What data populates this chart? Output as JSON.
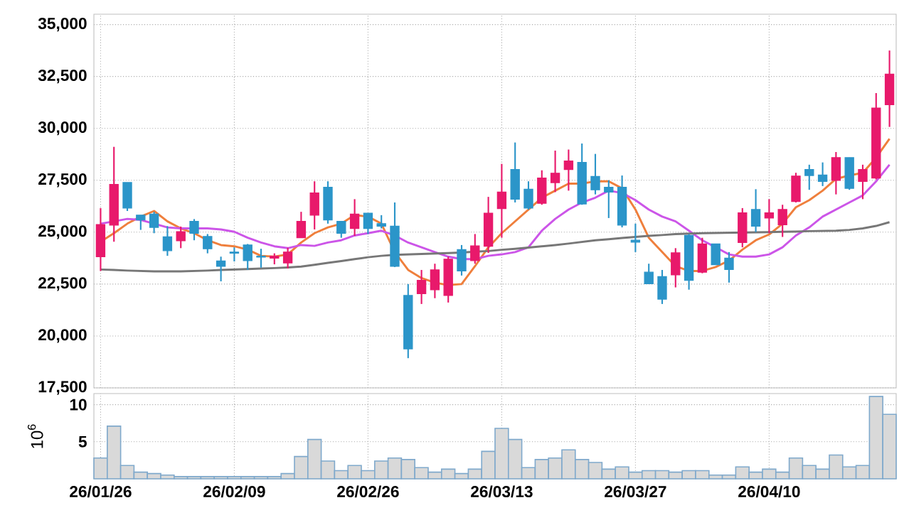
{
  "chart_data": [
    {
      "type": "candlestick",
      "categories": [
        null,
        null,
        null,
        null,
        null,
        null,
        null,
        null,
        null,
        null,
        null,
        null,
        null,
        null,
        null,
        null,
        null,
        null,
        null,
        null,
        null,
        null,
        null,
        null,
        null,
        null,
        null,
        null,
        null,
        null,
        null,
        null,
        null,
        null,
        null,
        null,
        null,
        null,
        null,
        null,
        null,
        null,
        null,
        null,
        null,
        null,
        null,
        null,
        null,
        null,
        null,
        null,
        null,
        null,
        null,
        null,
        null,
        null,
        null,
        null
      ],
      "ohlc": [
        [
          23820,
          26160,
          23130,
          25360
        ],
        [
          25340,
          29110,
          24540,
          27300
        ],
        [
          27390,
          27390,
          26020,
          26160
        ],
        [
          25820,
          25820,
          25110,
          25590
        ],
        [
          25870,
          25980,
          24950,
          25230
        ],
        [
          24770,
          25290,
          23860,
          24110
        ],
        [
          24590,
          25270,
          24230,
          25020
        ],
        [
          25520,
          25630,
          24610,
          24950
        ],
        [
          24790,
          24910,
          23980,
          24200
        ],
        [
          23610,
          23820,
          22630,
          23360
        ],
        [
          24040,
          24270,
          23590,
          23990
        ],
        [
          24380,
          24430,
          23180,
          23630
        ],
        [
          23840,
          24200,
          23290,
          23800
        ],
        [
          23750,
          23980,
          23450,
          23840
        ],
        [
          23520,
          24250,
          23250,
          24040
        ],
        [
          24730,
          25980,
          24730,
          25520
        ],
        [
          25820,
          27450,
          25130,
          26890
        ],
        [
          27160,
          27450,
          25410,
          25590
        ],
        [
          25520,
          25520,
          24730,
          24950
        ],
        [
          25180,
          26590,
          24820,
          25870
        ],
        [
          25910,
          25910,
          24910,
          25180
        ],
        [
          25410,
          25820,
          25180,
          25290
        ],
        [
          25290,
          26430,
          23320,
          23360
        ],
        [
          21950,
          22500,
          18930,
          19380
        ],
        [
          22040,
          23180,
          21540,
          22680
        ],
        [
          22230,
          23480,
          21820,
          23180
        ],
        [
          21950,
          23820,
          21610,
          23700
        ],
        [
          24160,
          24380,
          22910,
          23130
        ],
        [
          23630,
          24910,
          23480,
          24340
        ],
        [
          24320,
          26700,
          24000,
          25910
        ],
        [
          26140,
          28290,
          24730,
          26930
        ],
        [
          28020,
          29320,
          26430,
          26590
        ],
        [
          27070,
          27450,
          26090,
          26160
        ],
        [
          26390,
          27980,
          26320,
          27610
        ],
        [
          27390,
          28930,
          26930,
          27840
        ],
        [
          28020,
          28980,
          27000,
          28430
        ],
        [
          28360,
          29270,
          26320,
          26360
        ],
        [
          27680,
          28770,
          26820,
          27040
        ],
        [
          27160,
          27500,
          25680,
          26930
        ],
        [
          27160,
          27730,
          25230,
          25340
        ],
        [
          24610,
          25410,
          24040,
          24520
        ],
        [
          23070,
          23480,
          22520,
          22520
        ],
        [
          22860,
          23180,
          21540,
          21770
        ],
        [
          22950,
          24230,
          22340,
          24000
        ],
        [
          24840,
          24910,
          22230,
          22680
        ],
        [
          23070,
          24730,
          23020,
          24430
        ],
        [
          24430,
          24430,
          23430,
          23430
        ],
        [
          23750,
          24040,
          22570,
          23200
        ],
        [
          24500,
          26160,
          24270,
          25930
        ],
        [
          26090,
          27070,
          25000,
          25290
        ],
        [
          25680,
          26590,
          24950,
          25930
        ],
        [
          25360,
          26320,
          24770,
          26090
        ],
        [
          26480,
          27860,
          26430,
          27700
        ],
        [
          28020,
          28250,
          27040,
          27730
        ],
        [
          27750,
          28360,
          27220,
          27450
        ],
        [
          27500,
          28860,
          26820,
          28590
        ],
        [
          28590,
          28590,
          27040,
          27110
        ],
        [
          27450,
          28250,
          26590,
          28020
        ],
        [
          27610,
          31700,
          27540,
          30980
        ],
        [
          31140,
          33750,
          30070,
          32610
        ]
      ],
      "series": [
        {
          "type": "line",
          "color": "#ef7f3c",
          "values": [
            24540,
            24950,
            25410,
            25750,
            26020,
            25520,
            25180,
            24950,
            24610,
            24380,
            24320,
            24160,
            23860,
            23820,
            23930,
            24500,
            24950,
            25230,
            25410,
            25820,
            25750,
            25410,
            24040,
            23180,
            22790,
            22570,
            22450,
            22500,
            23360,
            24270,
            24950,
            25520,
            26090,
            26660,
            27000,
            27340,
            27340,
            27450,
            27450,
            27110,
            26090,
            24730,
            24040,
            23360,
            23130,
            23130,
            23320,
            23630,
            24160,
            24610,
            24890,
            25410,
            26200,
            26540,
            27000,
            27570,
            27730,
            27860,
            28590,
            29500
          ]
        },
        {
          "type": "line",
          "color": "#cc55e8",
          "values": [
            25410,
            25520,
            25640,
            25590,
            25410,
            25230,
            25180,
            25180,
            25180,
            25130,
            25020,
            24730,
            24500,
            24320,
            24230,
            24380,
            24340,
            24500,
            24610,
            24840,
            24950,
            25070,
            24840,
            24500,
            24270,
            24040,
            23820,
            23700,
            23700,
            23860,
            23930,
            24040,
            24270,
            25070,
            25640,
            26090,
            26430,
            26660,
            27000,
            26890,
            26540,
            26090,
            25750,
            25520,
            25070,
            24610,
            24270,
            23930,
            23820,
            23820,
            23930,
            24270,
            24840,
            25230,
            25750,
            26090,
            26430,
            26770,
            27450,
            28250
          ]
        },
        {
          "type": "line",
          "color": "#777777",
          "values": [
            23200,
            23180,
            23150,
            23130,
            23110,
            23110,
            23110,
            23130,
            23150,
            23180,
            23200,
            23220,
            23250,
            23270,
            23300,
            23340,
            23430,
            23520,
            23610,
            23700,
            23790,
            23860,
            23910,
            23930,
            23950,
            23970,
            23990,
            24020,
            24060,
            24090,
            24150,
            24200,
            24260,
            24320,
            24380,
            24450,
            24530,
            24610,
            24660,
            24720,
            24770,
            24820,
            24860,
            24910,
            24930,
            24950,
            24960,
            24970,
            24980,
            24990,
            25000,
            25020,
            25030,
            25050,
            25060,
            25070,
            25110,
            25180,
            25300,
            25480
          ]
        }
      ],
      "ylim": [
        17500,
        35500
      ],
      "yticks": [
        {
          "value": 17500,
          "label": "17,500"
        },
        {
          "value": 20000,
          "label": "20,000"
        },
        {
          "value": 22500,
          "label": "22,500"
        },
        {
          "value": 25000,
          "label": "25,000"
        },
        {
          "value": 27500,
          "label": "27,500"
        },
        {
          "value": 30000,
          "label": "30,000"
        },
        {
          "value": 32500,
          "label": "32,500"
        },
        {
          "value": 35000,
          "label": "35,000"
        }
      ],
      "grid": true,
      "tick_labels": "y"
    },
    {
      "type": "bar",
      "categories": [
        "26/01/26",
        null,
        null,
        null,
        null,
        null,
        null,
        null,
        null,
        null,
        "26/02/09",
        null,
        null,
        null,
        null,
        null,
        null,
        null,
        null,
        null,
        "26/02/26",
        null,
        null,
        null,
        null,
        null,
        null,
        null,
        null,
        null,
        "26/03/13",
        null,
        null,
        null,
        null,
        null,
        null,
        null,
        null,
        null,
        "26/03/27",
        null,
        null,
        null,
        null,
        null,
        null,
        null,
        null,
        null,
        "26/04/10",
        null,
        null,
        null,
        null,
        null,
        null,
        null,
        null,
        null
      ],
      "values": [
        2.8,
        7.1,
        1.8,
        0.9,
        0.7,
        0.5,
        0.3,
        0.3,
        0.3,
        0.3,
        0.3,
        0.3,
        0.3,
        0.3,
        0.7,
        3.0,
        5.3,
        2.4,
        1.1,
        1.8,
        1.1,
        2.4,
        2.8,
        2.6,
        1.5,
        0.9,
        1.3,
        0.7,
        1.3,
        3.7,
        6.8,
        5.3,
        1.5,
        2.6,
        2.8,
        3.9,
        2.6,
        2.2,
        1.3,
        1.6,
        0.9,
        1.1,
        1.1,
        0.9,
        1.1,
        1.1,
        0.5,
        0.5,
        1.6,
        0.9,
        1.3,
        0.9,
        2.8,
        1.8,
        1.3,
        3.2,
        1.6,
        1.8,
        11.1,
        8.7
      ],
      "color": "#d9d9d9",
      "ylim": [
        0,
        11.5
      ],
      "yticks": [
        5,
        10
      ],
      "ylabel": "10$^{6}$",
      "grid": true
    }
  ]
}
